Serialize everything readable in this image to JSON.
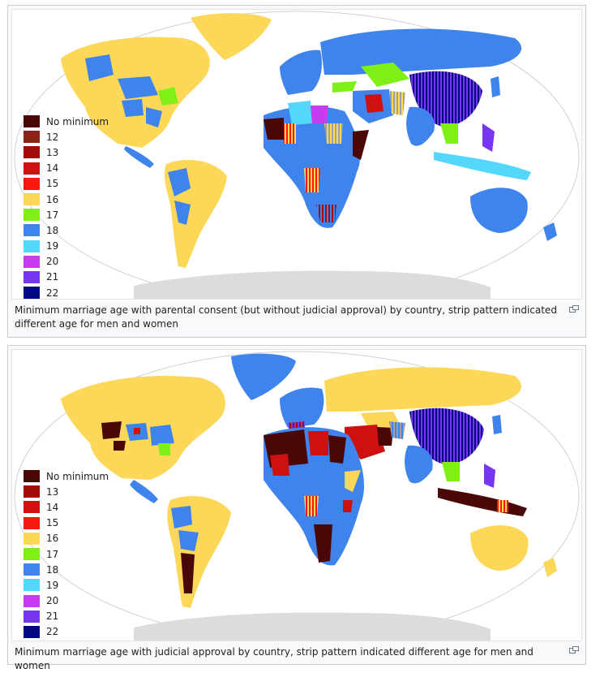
{
  "colors": {
    "none": "#4a0707",
    "a12": "#8b2319",
    "a13": "#a30b0b",
    "a14": "#cf1010",
    "a15": "#f61a0e",
    "a16": "#fdd757",
    "a17": "#7ef016",
    "a18": "#3f84ec",
    "a19": "#55d6fb",
    "a20": "#c83cf0",
    "a21": "#7736f0",
    "a22": "#030981",
    "nodata": "#dcdcdc",
    "ocean": "#ffffff"
  },
  "figure1": {
    "legend": [
      {
        "label": "No minimum",
        "color": "#4a0707"
      },
      {
        "label": "12",
        "color": "#8b2319"
      },
      {
        "label": "13",
        "color": "#a30b0b"
      },
      {
        "label": "14",
        "color": "#cf1010"
      },
      {
        "label": "15",
        "color": "#f61a0e"
      },
      {
        "label": "16",
        "color": "#fdd757"
      },
      {
        "label": "17",
        "color": "#7ef016"
      },
      {
        "label": "18",
        "color": "#3f84ec"
      },
      {
        "label": "19",
        "color": "#55d6fb"
      },
      {
        "label": "20",
        "color": "#c83cf0"
      },
      {
        "label": "21",
        "color": "#7736f0"
      },
      {
        "label": "22",
        "color": "#030981"
      }
    ],
    "caption": "Minimum marriage age with parental consent (but without judicial approval) by country, strip pattern indicated different age for men and women"
  },
  "figure2": {
    "legend": [
      {
        "label": "No minimum",
        "color": "#4a0707"
      },
      {
        "label": "13",
        "color": "#a30b0b"
      },
      {
        "label": "14",
        "color": "#cf1010"
      },
      {
        "label": "15",
        "color": "#f61a0e"
      },
      {
        "label": "16",
        "color": "#fdd757"
      },
      {
        "label": "17",
        "color": "#7ef016"
      },
      {
        "label": "18",
        "color": "#3f84ec"
      },
      {
        "label": "19",
        "color": "#55d6fb"
      },
      {
        "label": "20",
        "color": "#c83cf0"
      },
      {
        "label": "21",
        "color": "#7736f0"
      },
      {
        "label": "22",
        "color": "#030981"
      }
    ],
    "caption": "Minimum marriage age with judicial approval by country, strip pattern indicated different age for men and women"
  },
  "icons": {
    "enlarge": "enlarge-icon"
  }
}
